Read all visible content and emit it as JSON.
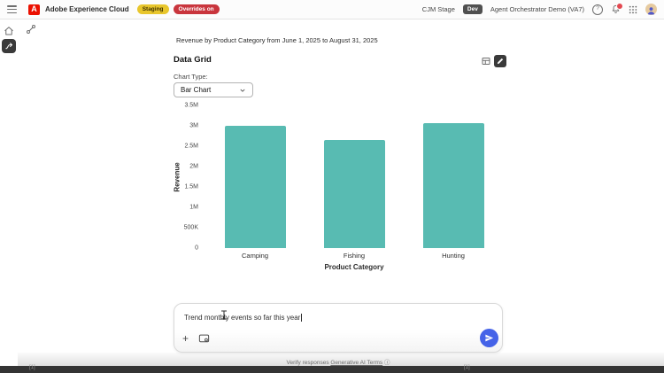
{
  "header": {
    "product_name": "Adobe Experience Cloud",
    "staging_badge": "Staging",
    "overrides_badge": "Overrides on",
    "org_name": "CJM Stage",
    "env_badge": "Dev",
    "sandbox_name": "Agent Orchestrator Demo (VA7)"
  },
  "main": {
    "summary_text": "Revenue by Product Category from June 1, 2025 to August 31, 2025",
    "section_title": "Data Grid",
    "chart_type_label": "Chart Type:",
    "chart_type_value": "Bar Chart"
  },
  "chart_data": {
    "type": "bar",
    "categories": [
      "Camping",
      "Fishing",
      "Hunting"
    ],
    "values": [
      3000000,
      2650000,
      3070000
    ],
    "title": "",
    "xlabel": "Product Category",
    "ylabel": "Revenue",
    "ylim": [
      0,
      3500000
    ],
    "yticks": [
      0,
      500000,
      1000000,
      1500000,
      2000000,
      2500000,
      3000000,
      3500000
    ],
    "ytick_labels": [
      "0",
      "500K",
      "1M",
      "1.5M",
      "2M",
      "2.5M",
      "3M",
      "3.5M"
    ],
    "bar_color": "#58BBB2",
    "grid": false,
    "legend": false
  },
  "composer": {
    "input_value": "Trend monthly events so far this year",
    "footer_prefix": "Verify responses ",
    "footer_link": "Generative AI Terms"
  },
  "icons": {
    "help_glyph": "?",
    "plus_glyph": "+",
    "info_glyph": "ⓘ",
    "adobe_glyph": "A"
  },
  "artifacts": {
    "mark_left": "[1]",
    "mark_right": "[1]"
  },
  "colors": {
    "bar": "#58BBB2",
    "send_button_blue": "#4563E8",
    "staging_yellow": "#E8C62C",
    "overrides_red": "#C9353D",
    "adobe_red": "#EB1000",
    "notification_red": "#E34850"
  }
}
